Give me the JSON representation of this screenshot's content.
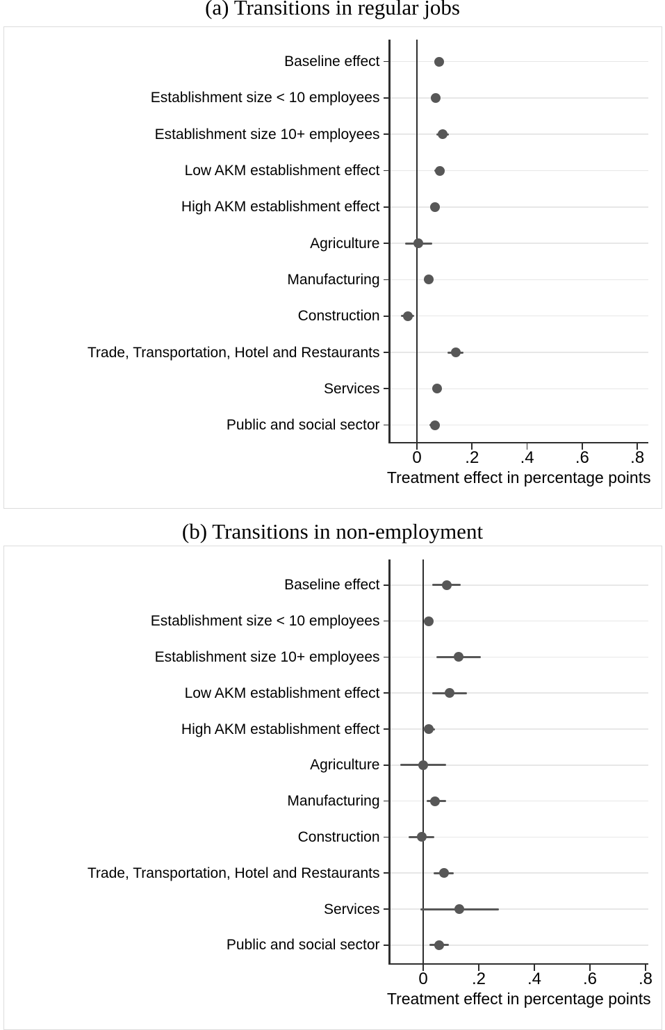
{
  "figure": {
    "panel_a_title": "(a) Transitions in regular jobs",
    "panel_b_title": "(b) Transitions in non-employment"
  },
  "colors": {
    "marker": "#575757",
    "ci_whisker": "#575757",
    "axis_line": "#2e2e2e",
    "gridline": "#e7e7e7",
    "panel_border": "#dcdcdc",
    "text": "#000000",
    "background": "#ffffff"
  },
  "chart_data": [
    {
      "type": "scatter",
      "subtype": "coefficient-plot-dot-ci",
      "title": "(a) Transitions in regular jobs",
      "xlabel": "Treatment effect in percentage points",
      "ylabel": "",
      "xlim": [
        -0.1,
        0.84
      ],
      "x_ticks": [
        0,
        0.2,
        0.4,
        0.6,
        0.8
      ],
      "x_tick_labels": [
        "0",
        ".2",
        ".4",
        ".6",
        ".8"
      ],
      "reference_line_x": 0,
      "grid": "horizontal-light",
      "legend": "none",
      "categories": [
        "Baseline effect",
        "Establishment size < 10 employees",
        "Establishment size 10+ employees",
        "Low AKM establishment effect",
        "High AKM establishment effect",
        "Agriculture",
        "Manufacturing",
        "Construction",
        "Trade, Transportation, Hotel and Restaurants",
        "Services",
        "Public and social sector"
      ],
      "series": [
        {
          "name": "estimate",
          "values": [
            0.08,
            0.067,
            0.093,
            0.082,
            0.066,
            0.004,
            0.042,
            -0.034,
            0.14,
            0.073,
            0.065
          ]
        },
        {
          "name": "ci_low",
          "values": [
            0.063,
            0.051,
            0.071,
            0.064,
            0.048,
            -0.044,
            0.024,
            -0.058,
            0.11,
            0.056,
            0.046
          ]
        },
        {
          "name": "ci_high",
          "values": [
            0.097,
            0.083,
            0.115,
            0.1,
            0.084,
            0.056,
            0.061,
            -0.009,
            0.17,
            0.091,
            0.084
          ]
        }
      ]
    },
    {
      "type": "scatter",
      "subtype": "coefficient-plot-dot-ci",
      "title": "(b) Transitions in non-employment",
      "xlabel": "Treatment effect in percentage points",
      "ylabel": "",
      "xlim": [
        -0.12,
        0.81
      ],
      "x_ticks": [
        0,
        0.2,
        0.4,
        0.6,
        0.8
      ],
      "x_tick_labels": [
        "0",
        ".2",
        ".4",
        ".6",
        ".8"
      ],
      "reference_line_x": 0,
      "grid": "horizontal-light",
      "legend": "none",
      "categories": [
        "Baseline effect",
        "Establishment size < 10 employees",
        "Establishment size 10+ employees",
        "Low AKM establishment effect",
        "High AKM establishment effect",
        "Agriculture",
        "Manufacturing",
        "Construction",
        "Trade, Transportation, Hotel and Restaurants",
        "Services",
        "Public and social sector"
      ],
      "series": [
        {
          "name": "estimate",
          "values": [
            0.085,
            0.019,
            0.128,
            0.094,
            0.021,
            0.0,
            0.043,
            -0.006,
            0.076,
            0.13,
            0.057
          ]
        },
        {
          "name": "ci_low",
          "values": [
            0.033,
            0.004,
            0.048,
            0.033,
            0.0,
            -0.083,
            0.013,
            -0.052,
            0.038,
            -0.011,
            0.023
          ]
        },
        {
          "name": "ci_high",
          "values": [
            0.136,
            0.035,
            0.207,
            0.157,
            0.043,
            0.083,
            0.082,
            0.04,
            0.111,
            0.273,
            0.093
          ]
        }
      ]
    }
  ]
}
